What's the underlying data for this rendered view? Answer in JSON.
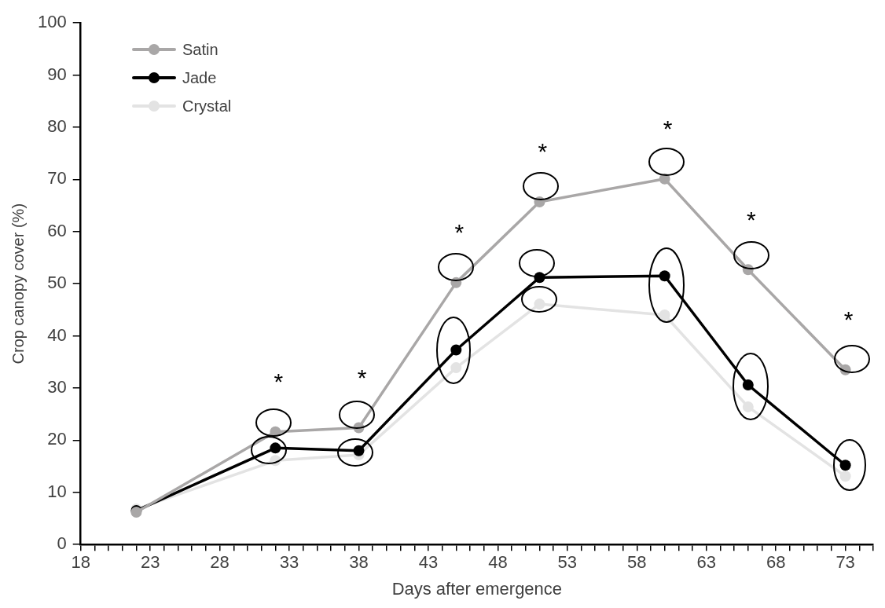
{
  "chart_data": {
    "type": "line",
    "xlabel": "Days after emergence",
    "ylabel": "Crop canopy cover (%)",
    "x": [
      22,
      32,
      38,
      45,
      51,
      60,
      66,
      73
    ],
    "series": [
      {
        "name": "Satin",
        "color": "#a9a7a7",
        "values": [
          6.2,
          21.6,
          22.4,
          50.2,
          65.7,
          70.1,
          52.7,
          33.5
        ]
      },
      {
        "name": "Jade",
        "color": "#000000",
        "values": [
          6.5,
          18.5,
          18.0,
          37.3,
          51.2,
          51.5,
          30.6,
          15.2
        ]
      },
      {
        "name": "Crystal",
        "color": "#e3e3e3",
        "values": [
          6.8,
          16.1,
          17.2,
          33.9,
          46.1,
          44.0,
          26.4,
          13.1
        ]
      }
    ],
    "xlim": [
      18,
      75
    ],
    "ylim": [
      0,
      100
    ],
    "xticks": [
      18,
      {
        "value": 19,
        "label": null
      },
      {
        "value": 20,
        "label": null
      },
      {
        "value": 21,
        "label": null
      },
      {
        "value": 22,
        "label": null
      },
      23,
      {
        "value": 24,
        "label": null
      },
      {
        "value": 25,
        "label": null
      },
      {
        "value": 26,
        "label": null
      },
      {
        "value": 27,
        "label": null
      },
      28,
      {
        "value": 29,
        "label": null
      },
      {
        "value": 30,
        "label": null
      },
      {
        "value": 31,
        "label": null
      },
      {
        "value": 32,
        "label": null
      },
      33,
      {
        "value": 34,
        "label": null
      },
      {
        "value": 35,
        "label": null
      },
      {
        "value": 36,
        "label": null
      },
      {
        "value": 37,
        "label": null
      },
      38,
      {
        "value": 39,
        "label": null
      },
      {
        "value": 40,
        "label": null
      },
      {
        "value": 41,
        "label": null
      },
      {
        "value": 42,
        "label": null
      },
      43,
      {
        "value": 44,
        "label": null
      },
      {
        "value": 45,
        "label": null
      },
      {
        "value": 46,
        "label": null
      },
      {
        "value": 47,
        "label": null
      },
      48,
      {
        "value": 49,
        "label": null
      },
      {
        "value": 50,
        "label": null
      },
      {
        "value": 51,
        "label": null
      },
      {
        "value": 52,
        "label": null
      },
      53,
      {
        "value": 54,
        "label": null
      },
      {
        "value": 55,
        "label": null
      },
      {
        "value": 56,
        "label": null
      },
      {
        "value": 57,
        "label": null
      },
      58,
      {
        "value": 59,
        "label": null
      },
      {
        "value": 60,
        "label": null
      },
      {
        "value": 61,
        "label": null
      },
      {
        "value": 62,
        "label": null
      },
      63,
      {
        "value": 64,
        "label": null
      },
      {
        "value": 65,
        "label": null
      },
      {
        "value": 66,
        "label": null
      },
      {
        "value": 67,
        "label": null
      },
      68,
      {
        "value": 69,
        "label": null
      },
      {
        "value": 70,
        "label": null
      },
      {
        "value": 71,
        "label": null
      },
      {
        "value": 72,
        "label": null
      },
      73,
      {
        "value": 74,
        "label": null
      },
      {
        "value": 75,
        "label": null
      }
    ],
    "yticks": [
      0,
      10,
      20,
      30,
      40,
      50,
      60,
      70,
      80,
      90,
      100
    ],
    "annotations": [
      "*",
      "*",
      "*",
      "*",
      "*",
      "*",
      "*"
    ],
    "legend": "top left",
    "grid": false,
    "marker": "circle",
    "line_style": "solid"
  }
}
